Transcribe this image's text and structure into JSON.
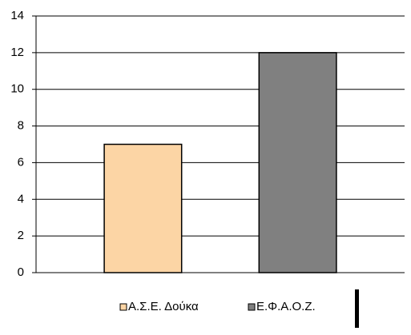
{
  "chart_data": {
    "type": "bar",
    "categories": [
      null
    ],
    "series": [
      {
        "name": "Α.Σ.Ε. Δούκα",
        "color": "#fcd5a5",
        "values": [
          7
        ]
      },
      {
        "name": "Ε.Φ.Α.Ο.Ζ.",
        "color": "#808080",
        "values": [
          12
        ]
      }
    ],
    "ylim": [
      0,
      14
    ],
    "yticks": [
      0,
      2,
      4,
      6,
      8,
      10,
      12,
      14
    ],
    "grid": true,
    "legend": "bottom"
  }
}
